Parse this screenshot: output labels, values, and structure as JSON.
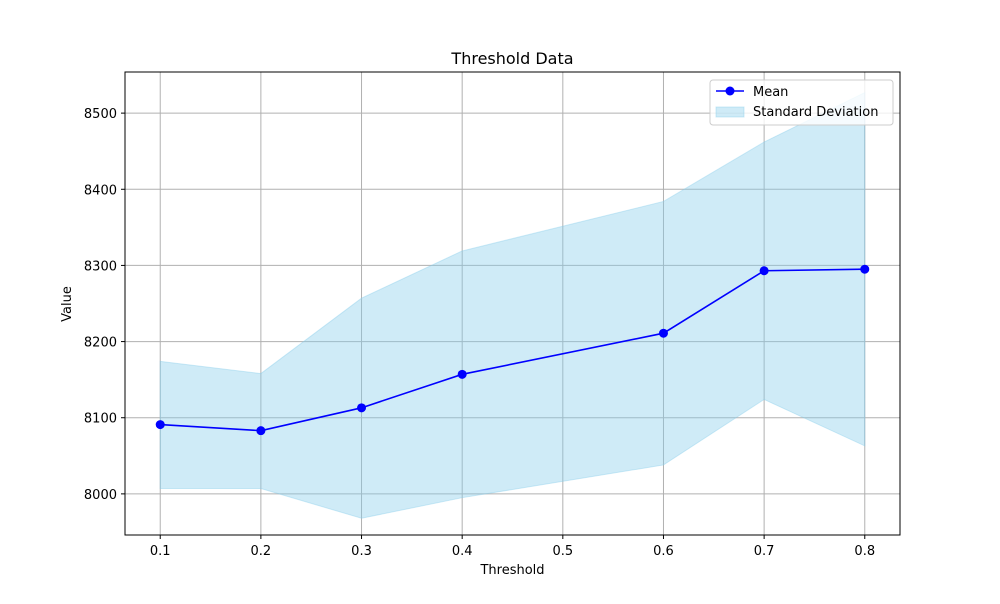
{
  "chart_data": {
    "type": "line",
    "title": "Threshold Data",
    "xlabel": "Threshold",
    "ylabel": "Value",
    "x": [
      0.1,
      0.2,
      0.3,
      0.4,
      0.6,
      0.7,
      0.8
    ],
    "xlim": [
      0.065,
      0.835
    ],
    "ylim": [
      7946,
      8554
    ],
    "xticks": [
      0.1,
      0.2,
      0.3,
      0.4,
      0.5,
      0.6,
      0.7,
      0.8
    ],
    "xtick_labels": [
      "0.1",
      "0.2",
      "0.3",
      "0.4",
      "0.5",
      "0.6",
      "0.7",
      "0.8"
    ],
    "yticks": [
      8000,
      8100,
      8200,
      8300,
      8400,
      8500
    ],
    "ytick_labels": [
      "8000",
      "8100",
      "8200",
      "8300",
      "8400",
      "8500"
    ],
    "grid": true,
    "legend_position": "top-right",
    "series": [
      {
        "name": "Mean",
        "kind": "line-marker",
        "color": "#0000ff",
        "values": [
          8091,
          8083,
          8113,
          8157,
          8211,
          8293,
          8295
        ]
      },
      {
        "name": "Standard Deviation",
        "kind": "band",
        "color": "#87ceeb",
        "lower": [
          8007,
          8007,
          7968,
          7995,
          8038,
          8124,
          8063
        ],
        "upper": [
          8174,
          8158,
          8257,
          8319,
          8384,
          8462,
          8527
        ]
      }
    ]
  }
}
